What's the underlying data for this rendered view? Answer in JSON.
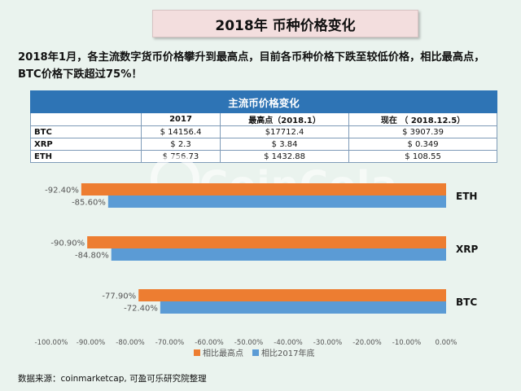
{
  "header": {
    "title": "2018年 币种价格变化",
    "intro": "2018年1月，各主流数字货币价格攀升到最高点，目前各币种价格下跌至较低价格，相比最高点，BTC价格下跌超过75%！"
  },
  "table": {
    "caption": "主流币价格变化",
    "columns": [
      "",
      "2017",
      "最高点（2018.1）",
      "现在 （ 2018.12.5）"
    ],
    "rows": [
      [
        "BTC",
        "$ 14156.4",
        "$17712.4",
        "$ 3907.39"
      ],
      [
        "XRP",
        "$ 2.3",
        "$ 3.84",
        "$ 0.349"
      ],
      [
        "ETH",
        "$ 756.73",
        "$ 1432.88",
        "$ 108.55"
      ]
    ]
  },
  "watermark": "CoinCola",
  "chart_data": {
    "type": "bar",
    "orientation": "horizontal",
    "categories": [
      "ETH",
      "XRP",
      "BTC"
    ],
    "series": [
      {
        "name": "相比最高点",
        "color": "#ed7d31",
        "values": [
          -92.4,
          -90.9,
          -77.9
        ],
        "labels": [
          "-92.40%",
          "-90.90%",
          "-77.90%"
        ]
      },
      {
        "name": "相比2017年底",
        "color": "#5b9bd5",
        "values": [
          -85.6,
          -84.8,
          -72.4
        ],
        "labels": [
          "-85.60%",
          "-84.80%",
          "-72.40%"
        ]
      }
    ],
    "xlim": [
      -100,
      0
    ],
    "xticks": [
      "-100.00%",
      "-90.00%",
      "-80.00%",
      "-70.00%",
      "-60.00%",
      "-50.00%",
      "-40.00%",
      "-30.00%",
      "-20.00%",
      "-10.00%",
      "0.00%"
    ],
    "legend": "bottom",
    "grid": false
  },
  "footer": {
    "source": "数据来源：coinmarketcap, 可盈可乐研究院整理"
  }
}
